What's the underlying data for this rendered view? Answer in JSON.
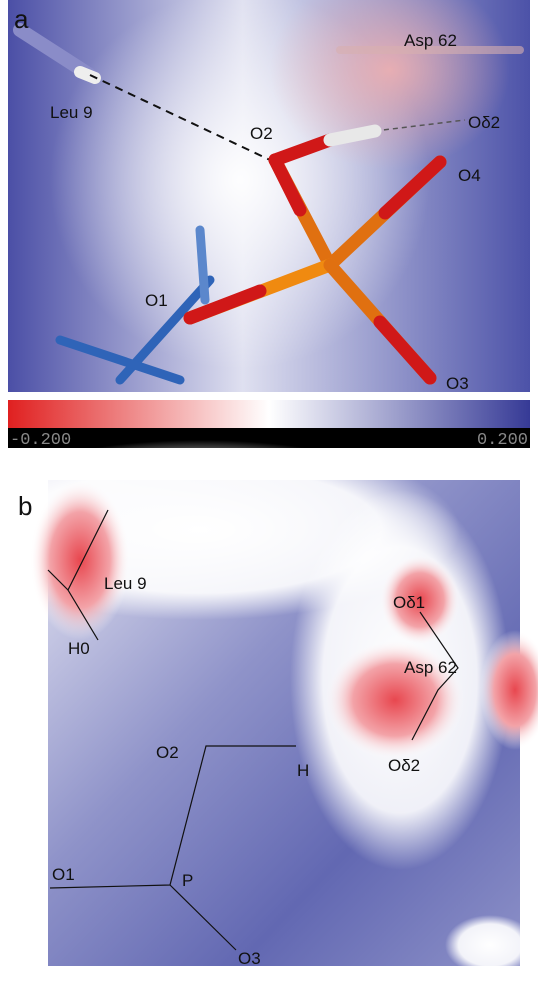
{
  "panel_a": {
    "letter": "a",
    "labels": [
      "Leu 9",
      "Asp 62",
      "O2",
      "Oδ2",
      "O4",
      "O1",
      "O3"
    ]
  },
  "colorbar": {
    "min_label": "-0.200",
    "max_label": "0.200"
  },
  "panel_b": {
    "letter": "b",
    "labels": [
      "Leu 9",
      "H0",
      "Oδ1",
      "Asp 62",
      "Oδ2",
      "O2",
      "H",
      "O1",
      "P",
      "O3"
    ]
  }
}
